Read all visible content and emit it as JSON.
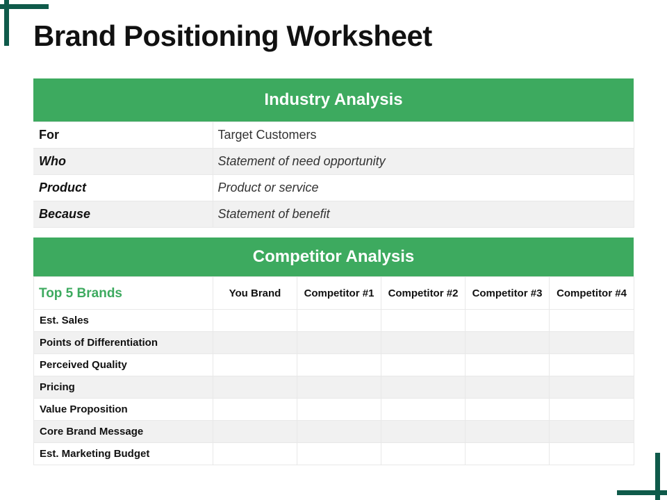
{
  "title": "Brand Positioning Worksheet",
  "colors": {
    "accent_green": "#3daa5f",
    "corner_teal": "#0f5a4a",
    "row_alt": "#f1f1f1"
  },
  "industry": {
    "header": "Industry Analysis",
    "rows": [
      {
        "label": "For",
        "value": "Target Customers"
      },
      {
        "label": "Who",
        "value": "Statement of need opportunity"
      },
      {
        "label": "Product",
        "value": "Product or service"
      },
      {
        "label": "Because",
        "value": "Statement of benefit"
      }
    ]
  },
  "competitor": {
    "header": "Competitor Analysis",
    "corner_label": "Top 5 Brands",
    "columns": [
      "You Brand",
      "Competitor #1",
      "Competitor #2",
      "Competitor #3",
      "Competitor #4"
    ],
    "rows": [
      "Est. Sales",
      "Points of Differentiation",
      "Perceived Quality",
      "Pricing",
      "Value Proposition",
      "Core Brand Message",
      "Est.  Marketing Budget"
    ]
  }
}
